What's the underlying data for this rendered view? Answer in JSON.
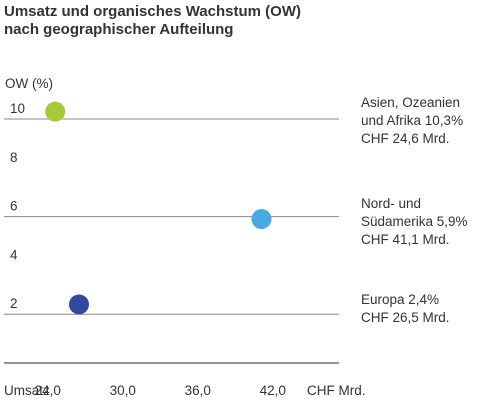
{
  "title_lines": [
    "Umsatz und organisches Wachstum (OW)",
    "nach geographischer Aufteilung"
  ],
  "chart_data": {
    "type": "scatter",
    "ylabel": "OW (%)",
    "xlabel": "Umsatz",
    "x_unit": "CHF Mrd.",
    "ylim": [
      0,
      11
    ],
    "xlim": [
      20.5,
      47.3
    ],
    "y_ticks": [
      10,
      8,
      6,
      4,
      2
    ],
    "y_tick_labels": [
      "10",
      "8",
      "6",
      "4",
      "2"
    ],
    "x_ticks": [
      24.0,
      30.0,
      36.0,
      42.0
    ],
    "x_tick_labels": [
      "24,0",
      "30,0",
      "36,0",
      "42,0"
    ],
    "gridlines": [
      10,
      6,
      2,
      0
    ],
    "points": [
      {
        "x": 24.6,
        "y": 10.3,
        "color": "#a6c93a",
        "label_lines": [
          "Asien, Ozeanien",
          "und Afrika 10,3%",
          "CHF 24,6 Mrd."
        ]
      },
      {
        "x": 41.1,
        "y": 5.9,
        "color": "#4aa8e3",
        "label_lines": [
          "Nord- und",
          "Südamerika 5,9%",
          "CHF 41,1 Mrd."
        ]
      },
      {
        "x": 26.5,
        "y": 2.4,
        "color": "#34489a",
        "label_lines": [
          "Europa 2,4%",
          "CHF 26,5 Mrd."
        ]
      }
    ]
  }
}
